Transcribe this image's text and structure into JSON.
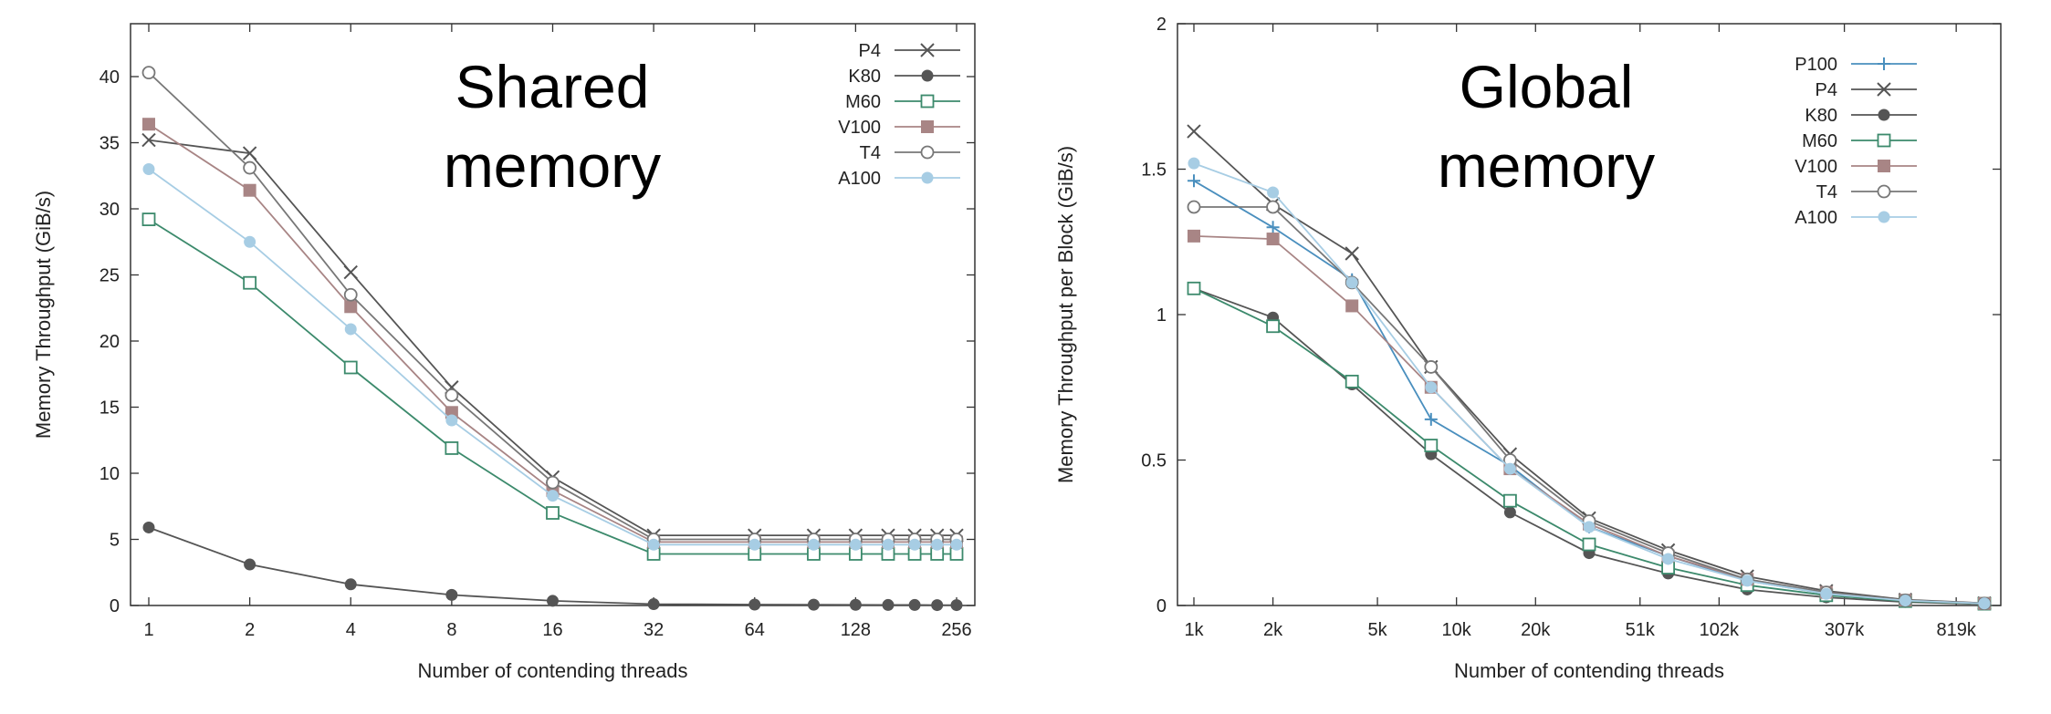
{
  "chart_data": [
    {
      "type": "line",
      "title": [
        "Shared",
        "memory"
      ],
      "xlabel": "Number of contending threads",
      "ylabel": "Memory Throughput (GiB/s)",
      "x_scale": "log2",
      "x": [
        1,
        2,
        4,
        8,
        16,
        32,
        64,
        96,
        128,
        160,
        192,
        224,
        256
      ],
      "xticks": [
        1,
        2,
        4,
        8,
        16,
        32,
        64,
        128,
        256
      ],
      "xtick_labels": [
        "1",
        "2",
        "4",
        "8",
        "16",
        "32",
        "64",
        "128",
        "256"
      ],
      "ylim": [
        0,
        44
      ],
      "yticks": [
        0,
        5,
        10,
        15,
        20,
        25,
        30,
        35,
        40
      ],
      "ytick_labels": [
        "0",
        "5",
        "10",
        "15",
        "20",
        "25",
        "30",
        "35",
        "40"
      ],
      "legend_position": "top-right",
      "series": [
        {
          "name": "P4",
          "marker": "x",
          "color": "#555555",
          "values": [
            35.2,
            34.2,
            25.2,
            16.5,
            9.7,
            5.3,
            5.3,
            5.3,
            5.3,
            5.3,
            5.3,
            5.3,
            5.3
          ]
        },
        {
          "name": "K80",
          "marker": "filled-circle",
          "color": "#555555",
          "values": [
            5.9,
            3.1,
            1.6,
            0.8,
            0.35,
            0.1,
            0.07,
            0.06,
            0.05,
            0.04,
            0.04,
            0.03,
            0.03
          ]
        },
        {
          "name": "M60",
          "marker": "open-square",
          "color": "#3c8a6c",
          "values": [
            29.2,
            24.4,
            18.0,
            11.9,
            7.0,
            3.9,
            3.9,
            3.9,
            3.9,
            3.9,
            3.9,
            3.9,
            3.9
          ]
        },
        {
          "name": "V100",
          "marker": "filled-square",
          "color": "#a88585",
          "values": [
            36.4,
            31.4,
            22.6,
            14.6,
            8.7,
            4.8,
            4.8,
            4.8,
            4.8,
            4.8,
            4.8,
            4.8,
            4.8
          ]
        },
        {
          "name": "T4",
          "marker": "open-circle",
          "color": "#777777",
          "values": [
            40.3,
            33.1,
            23.5,
            15.9,
            9.3,
            5.0,
            5.0,
            5.0,
            5.0,
            5.0,
            5.0,
            5.0,
            5.0
          ]
        },
        {
          "name": "A100",
          "marker": "filled-circle",
          "color": "#a7cde4",
          "values": [
            33.0,
            27.5,
            20.9,
            14.0,
            8.3,
            4.6,
            4.6,
            4.6,
            4.6,
            4.6,
            4.6,
            4.6,
            4.6
          ]
        }
      ]
    },
    {
      "type": "line",
      "title": [
        "Global",
        "memory"
      ],
      "xlabel": "Number of contending threads",
      "ylabel": "Memory Throughput per Block (GiB/s)",
      "x_scale": "log2",
      "x": [
        1024,
        2048,
        4096,
        8192,
        16384,
        32768,
        65536,
        131072,
        262144,
        524288,
        1048576
      ],
      "xticks": [
        1024,
        2048,
        5120,
        10240,
        20480,
        51200,
        102400,
        307200,
        819200
      ],
      "xtick_labels": [
        "1k",
        "2k",
        "5k",
        "10k",
        "20k",
        "51k",
        "102k",
        "307k",
        "819k"
      ],
      "ylim": [
        0,
        2
      ],
      "yticks": [
        0,
        0.5,
        1,
        1.5,
        2
      ],
      "ytick_labels": [
        "0",
        "0.5",
        "1",
        "1.5",
        "2"
      ],
      "legend_position": "top-right",
      "series": [
        {
          "name": "P100",
          "marker": "plus",
          "color": "#4a8fbe",
          "values": [
            1.46,
            1.3,
            1.12,
            0.64,
            0.48,
            0.27,
            0.17,
            0.085,
            0.04,
            0.017,
            0.007
          ]
        },
        {
          "name": "P4",
          "marker": "x",
          "color": "#555555",
          "values": [
            1.63,
            1.38,
            1.21,
            0.82,
            0.52,
            0.3,
            0.19,
            0.1,
            0.05,
            0.02,
            0.008
          ]
        },
        {
          "name": "K80",
          "marker": "filled-circle",
          "color": "#555555",
          "values": [
            1.09,
            0.99,
            0.76,
            0.52,
            0.32,
            0.18,
            0.11,
            0.055,
            0.028,
            0.012,
            0.005
          ]
        },
        {
          "name": "M60",
          "marker": "open-square",
          "color": "#3c8a6c",
          "values": [
            1.09,
            0.96,
            0.77,
            0.55,
            0.36,
            0.21,
            0.13,
            0.07,
            0.035,
            0.015,
            0.006
          ]
        },
        {
          "name": "V100",
          "marker": "filled-square",
          "color": "#a88585",
          "values": [
            1.27,
            1.26,
            1.03,
            0.75,
            0.47,
            0.28,
            0.17,
            0.09,
            0.045,
            0.018,
            0.007
          ]
        },
        {
          "name": "T4",
          "marker": "open-circle",
          "color": "#777777",
          "values": [
            1.37,
            1.37,
            1.11,
            0.82,
            0.5,
            0.29,
            0.18,
            0.09,
            0.045,
            0.018,
            0.007
          ]
        },
        {
          "name": "A100",
          "marker": "filled-circle",
          "color": "#a7cde4",
          "values": [
            1.52,
            1.42,
            1.11,
            0.75,
            0.47,
            0.27,
            0.16,
            0.085,
            0.04,
            0.017,
            0.007
          ]
        }
      ]
    }
  ]
}
